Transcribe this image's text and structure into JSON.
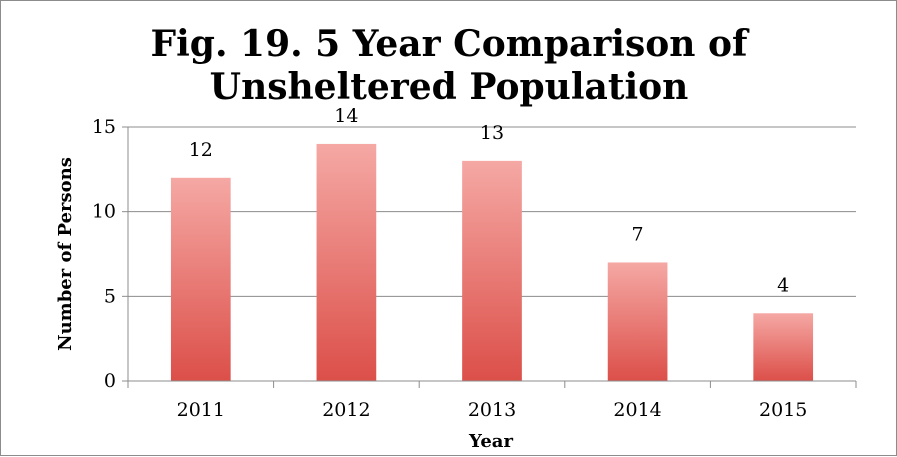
{
  "chart_data": {
    "type": "bar",
    "title_lines": [
      "Fig. 19. 5 Year Comparison of",
      "Unsheltered Population"
    ],
    "xlabel": "Year",
    "ylabel": "Number of Persons",
    "categories": [
      "2011",
      "2012",
      "2013",
      "2014",
      "2015"
    ],
    "values": [
      12,
      14,
      13,
      7,
      4
    ],
    "data_labels": [
      "12",
      "14",
      "13",
      "7",
      "4"
    ],
    "ylim": [
      0,
      15
    ],
    "yticks": [
      0,
      5,
      10,
      15
    ],
    "ytick_labels": [
      "0",
      "5",
      "10",
      "15"
    ],
    "grid": true,
    "legend": "none",
    "colors": {
      "bar_top": "#f5a8a4",
      "bar_bottom": "#dc4f49",
      "grid": "#8c8c8c",
      "axis": "#8c8c8c",
      "border": "#8c8c8c"
    }
  }
}
